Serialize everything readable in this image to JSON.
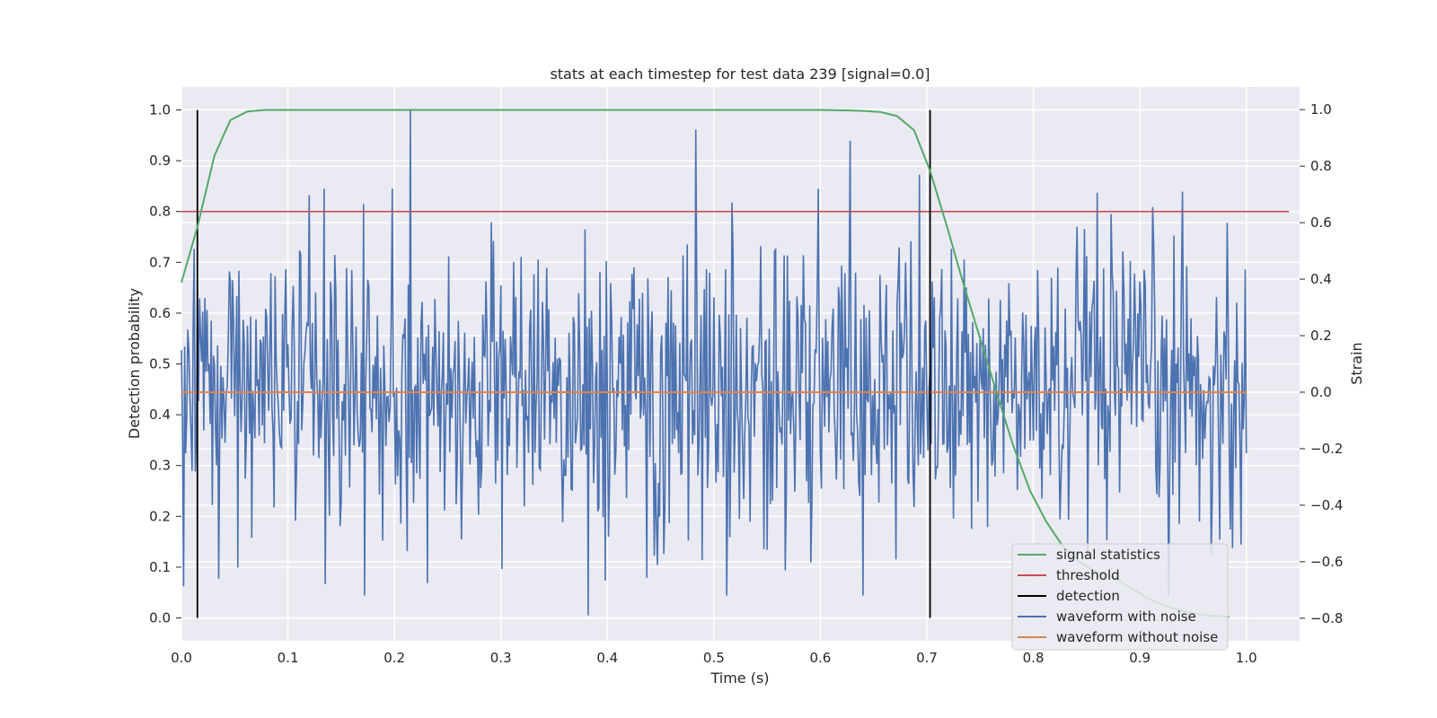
{
  "chart_data": {
    "type": "line",
    "title": "stats at each timestep for test data 239 [signal=0.0]",
    "xlabel": "Time (s)",
    "ylabel_left": "Detection probability",
    "ylabel_right": "Strain",
    "xlim": [
      0.0,
      1.05
    ],
    "ylim_left": [
      -0.045,
      1.045
    ],
    "ylim_right": [
      -0.88,
      1.08
    ],
    "x_ticks": [
      "0.0",
      "0.1",
      "0.2",
      "0.3",
      "0.4",
      "0.5",
      "0.6",
      "0.7",
      "0.8",
      "0.9",
      "1.0"
    ],
    "y_ticks_left": [
      "0.0",
      "0.1",
      "0.2",
      "0.3",
      "0.4",
      "0.5",
      "0.6",
      "0.7",
      "0.8",
      "0.9",
      "1.0"
    ],
    "y_ticks_right": [
      "−0.8",
      "−0.6",
      "−0.4",
      "−0.2",
      "0.0",
      "0.2",
      "0.4",
      "0.6",
      "0.8",
      "1.0"
    ],
    "y_ticks_right_values": [
      -0.8,
      -0.6,
      -0.4,
      -0.2,
      0.0,
      0.2,
      0.4,
      0.6,
      0.8,
      1.0
    ],
    "grid": true,
    "legend_position": "lower-right",
    "series": [
      {
        "name": "signal statistics",
        "axis": "left",
        "color": "#55a868",
        "x": [
          0.0,
          0.015,
          0.031,
          0.046,
          0.062,
          0.078,
          0.1,
          0.2,
          0.3,
          0.4,
          0.5,
          0.6,
          0.625,
          0.641,
          0.656,
          0.672,
          0.688,
          0.703,
          0.719,
          0.734,
          0.75,
          0.766,
          0.781,
          0.797,
          0.812,
          0.828,
          0.844,
          0.859,
          0.875,
          0.891,
          0.906,
          0.922,
          0.938,
          0.953,
          0.969,
          0.984
        ],
        "y": [
          0.66,
          0.77,
          0.91,
          0.98,
          0.997,
          1.0,
          1.0,
          1.0,
          1.0,
          1.0,
          1.0,
          1.0,
          0.999,
          0.998,
          0.996,
          0.988,
          0.96,
          0.88,
          0.77,
          0.66,
          0.55,
          0.44,
          0.34,
          0.25,
          0.19,
          0.14,
          0.11,
          0.09,
          0.08,
          0.06,
          0.04,
          0.025,
          0.015,
          0.008,
          0.004,
          0.002
        ]
      },
      {
        "name": "threshold",
        "axis": "left",
        "color": "#c44e52",
        "x": [
          0.0,
          1.04
        ],
        "y": [
          0.8,
          0.8
        ]
      },
      {
        "name": "detection",
        "axis": "left",
        "color": "#000000",
        "type": "vlines",
        "x": [
          0.015,
          0.703
        ],
        "ymin": 0.0,
        "ymax": 1.0
      },
      {
        "name": "waveform with noise",
        "axis": "right",
        "color": "#4c72b0",
        "x_start": 0.0,
        "x_end": 1.0,
        "n_points": 1000,
        "seed": 239,
        "spikes": [
          {
            "x": 0.215,
            "y": 1.0
          },
          {
            "x": 0.382,
            "y": -0.79
          },
          {
            "x": 0.483,
            "y": 0.93
          },
          {
            "x": 0.628,
            "y": 0.89
          },
          {
            "x": 0.693,
            "y": 0.77
          },
          {
            "x": 0.94,
            "y": 0.71
          },
          {
            "x": 0.035,
            "y": -0.66
          },
          {
            "x": 0.135,
            "y": -0.68
          },
          {
            "x": 0.172,
            "y": -0.72
          }
        ],
        "amplitude": 0.26
      },
      {
        "name": "waveform without noise",
        "axis": "right",
        "color": "#dd8452",
        "x": [
          0.0,
          1.0
        ],
        "y": [
          0.0,
          0.0
        ]
      }
    ]
  }
}
